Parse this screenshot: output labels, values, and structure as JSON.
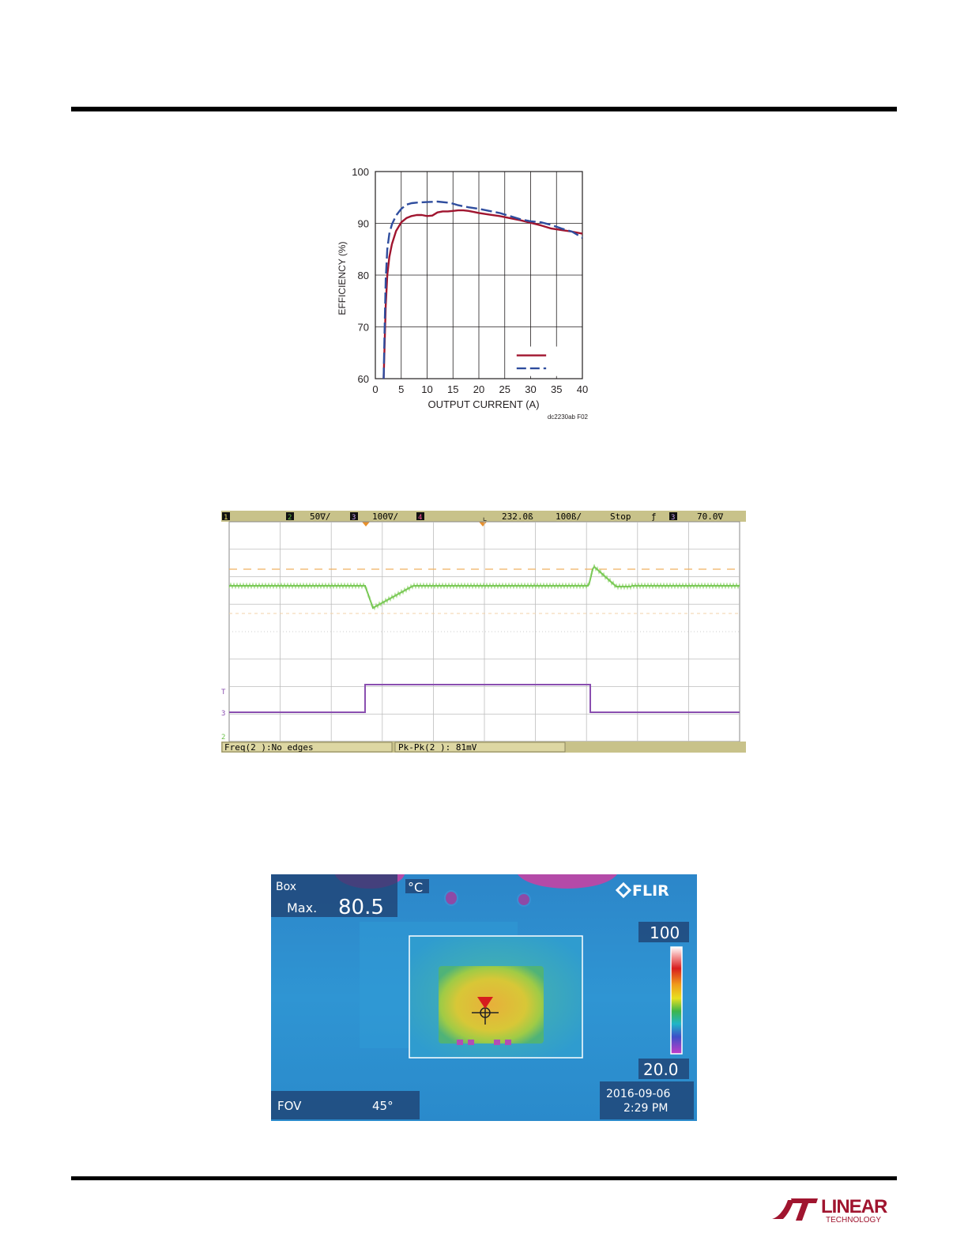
{
  "chart_data": {
    "type": "line",
    "title": "",
    "xlabel": "OUTPUT CURRENT (A)",
    "ylabel": "EFFICIENCY (%)",
    "xlim": [
      0,
      40
    ],
    "ylim": [
      60,
      100
    ],
    "x_ticks": [
      "0",
      "5",
      "10",
      "15",
      "20",
      "25",
      "30",
      "35",
      "40"
    ],
    "y_ticks": [
      "60",
      "70",
      "80",
      "90",
      "100"
    ],
    "grid": true,
    "legend": "bottom-right",
    "series": [
      {
        "color": "#a0152f",
        "style": "solid",
        "x": [
          1.6,
          1.8,
          2.0,
          2.3,
          2.7,
          3.2,
          4,
          5,
          6,
          7,
          8,
          9,
          10,
          11,
          12,
          13,
          14,
          15,
          16,
          17,
          18,
          19,
          20,
          22,
          24,
          26,
          28,
          30,
          32,
          34,
          36,
          38,
          40
        ],
        "y": [
          60,
          67,
          74,
          80,
          83.5,
          86,
          88.5,
          90.2,
          91,
          91.4,
          91.6,
          91.6,
          91.4,
          91.5,
          92.1,
          92.3,
          92.3,
          92.4,
          92.5,
          92.5,
          92.4,
          92.2,
          92.0,
          91.7,
          91.4,
          91.0,
          90.6,
          90.1,
          89.6,
          89.0,
          88.7,
          88.4,
          88.0
        ]
      },
      {
        "color": "#2f4d9e",
        "style": "dashed",
        "x": [
          1.6,
          1.8,
          2.0,
          2.3,
          2.7,
          3.2,
          4,
          5,
          6,
          7,
          8,
          10,
          12,
          14,
          15,
          16,
          18,
          20,
          22,
          24,
          26,
          28,
          30,
          32,
          34,
          36,
          38,
          40
        ],
        "y": [
          60,
          70,
          79,
          85,
          88,
          89.8,
          91.5,
          92.8,
          93.6,
          93.9,
          94.0,
          94.1,
          94.2,
          94.0,
          93.8,
          93.5,
          93.1,
          92.8,
          92.4,
          92.0,
          91.4,
          90.8,
          90.4,
          90.2,
          89.7,
          89.0,
          88.4,
          87.2
        ]
      }
    ],
    "source_id": "dc2230ab F02"
  },
  "scope": {
    "status_bar": {
      "ch1": "1",
      "ch2": "2",
      "ch2_scale": "50∇/",
      "ch3": "3",
      "ch3_scale": "100∇/",
      "ch4": "4",
      "time_offset": "232.0ß",
      "time_scale": "100ß/",
      "run_state": "Stop",
      "trigger_ch": "3",
      "trigger_level": "70.0∇"
    },
    "markers": {
      "t": "T",
      "ch3": "3",
      "ch2": "2"
    },
    "measurements": {
      "freq": "Freq(2 ):No edges",
      "pkpk": "Pk-Pk(2 ): 81mV"
    },
    "colors": {
      "bar": "#c8c28a",
      "ch2": "#6cc04a",
      "ch3": "#8a4fb0",
      "grid": "#bdbdbd",
      "cursor": "#f0b060"
    }
  },
  "thermal": {
    "box_label": "Box",
    "max_label": "Max.",
    "max_value": "80.5",
    "unit": "°C",
    "brand": "FLIR",
    "scale_max": "100",
    "scale_min": "20.0",
    "fov_label": "FOV",
    "fov_value": "45°",
    "date": "2016-09-06",
    "time": "2:29 PM"
  },
  "logo": {
    "name": "LINEAR",
    "sub": "TECHNOLOGY",
    "color": "#a0152f"
  }
}
